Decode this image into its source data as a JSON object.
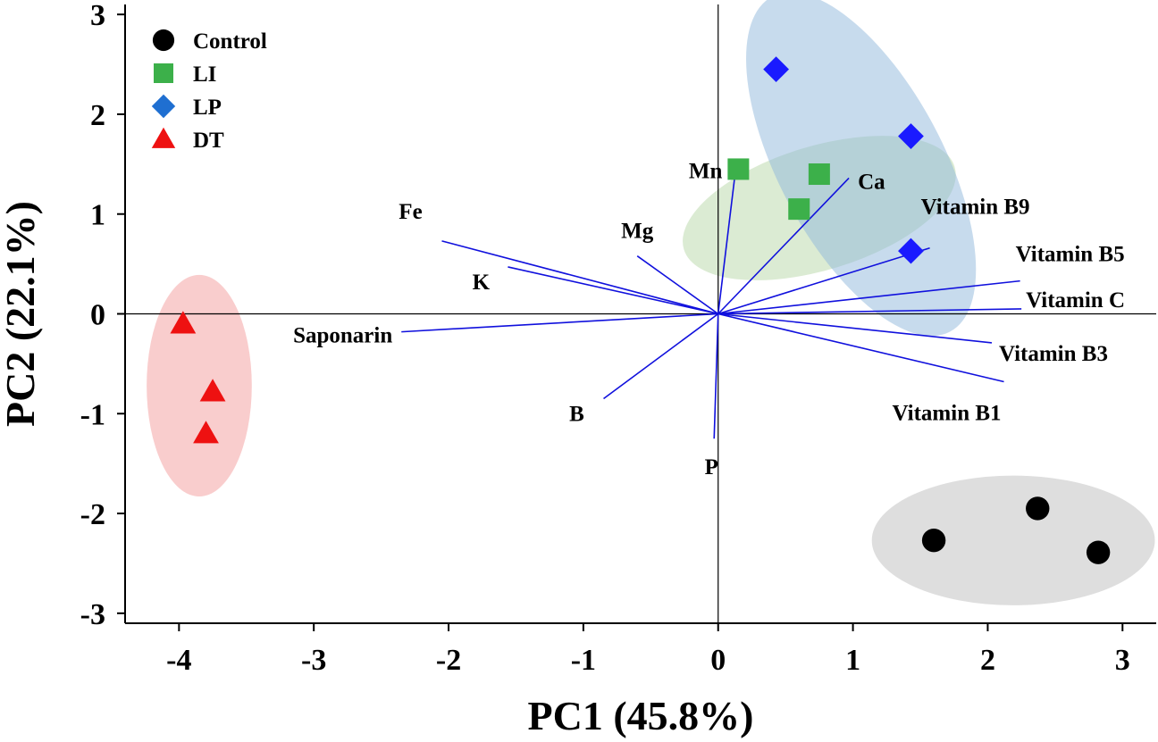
{
  "chart_data": {
    "type": "scatter",
    "subtype": "pca-biplot",
    "xlabel": "PC1 (45.8%)",
    "ylabel": "PC2 (22.1%)",
    "xlim": [
      -4.4,
      3.25
    ],
    "ylim": [
      -3.1,
      3.1
    ],
    "x_ticks": [
      -4,
      -3,
      -2,
      -1,
      0,
      1,
      2,
      3
    ],
    "y_ticks": [
      -3,
      -2,
      -1,
      0,
      1,
      2,
      3
    ],
    "x_tick_labels": [
      "-4",
      "-3",
      "-2",
      "-1",
      "0",
      "1",
      "2",
      "3"
    ],
    "y_tick_labels": [
      "-3",
      "-2",
      "-1",
      "0",
      "1",
      "2",
      "3"
    ],
    "legend_position": "top-left",
    "series": [
      {
        "name": "Control",
        "marker": "circle",
        "color": "#000000",
        "ellipse_color": "#bdbdbd",
        "points": [
          [
            1.6,
            -2.27
          ],
          [
            2.37,
            -1.95
          ],
          [
            2.82,
            -2.39
          ]
        ]
      },
      {
        "name": "LI",
        "marker": "square",
        "color": "#3cb04a",
        "ellipse_color": "#b7d7a8",
        "points": [
          [
            0.15,
            1.45
          ],
          [
            0.75,
            1.4
          ],
          [
            0.6,
            1.05
          ]
        ]
      },
      {
        "name": "LP",
        "marker": "diamond",
        "color": "#1a1aff",
        "legend_color": "#1f6fd1",
        "ellipse_color": "#8fb8dc",
        "points": [
          [
            0.43,
            2.45
          ],
          [
            1.43,
            1.78
          ],
          [
            1.43,
            0.63
          ]
        ]
      },
      {
        "name": "DT",
        "marker": "triangle",
        "color": "#ee1111",
        "ellipse_color": "#f49b9b",
        "points": [
          [
            -3.97,
            -0.1
          ],
          [
            -3.75,
            -0.78
          ],
          [
            -3.8,
            -1.2
          ]
        ]
      }
    ],
    "group_ellipses": [
      {
        "group": "Control",
        "cx": 2.19,
        "cy": -2.27,
        "rx": 1.05,
        "ry": 0.65,
        "rotation_deg": 0
      },
      {
        "group": "LI",
        "cx": 0.75,
        "cy": 1.06,
        "rx": 1.05,
        "ry": 0.62,
        "rotation_deg": -17
      },
      {
        "group": "LP",
        "cx": 1.06,
        "cy": 1.5,
        "rx": 0.61,
        "ry": 1.9,
        "rotation_deg": -28
      },
      {
        "group": "DT",
        "cx": -3.85,
        "cy": -0.72,
        "rx": 0.39,
        "ry": 1.11,
        "rotation_deg": 0
      }
    ],
    "loading_color": "#1010dd",
    "loadings": [
      {
        "name": "Fe",
        "x": -2.05,
        "y": 0.73
      },
      {
        "name": "K",
        "x": -1.56,
        "y": 0.47
      },
      {
        "name": "Mg",
        "x": -0.6,
        "y": 0.58
      },
      {
        "name": "Saponarin",
        "x": -2.35,
        "y": -0.18
      },
      {
        "name": "B",
        "x": -0.85,
        "y": -0.85
      },
      {
        "name": "P",
        "x": -0.03,
        "y": -1.25
      },
      {
        "name": "Mn",
        "x": 0.13,
        "y": 1.45
      },
      {
        "name": "Ca",
        "x": 0.97,
        "y": 1.36
      },
      {
        "name": "Vitamin B9",
        "x": 1.57,
        "y": 0.66
      },
      {
        "name": "Vitamin B5",
        "x": 2.24,
        "y": 0.33
      },
      {
        "name": "Vitamin C",
        "x": 2.25,
        "y": 0.05
      },
      {
        "name": "Vitamin B3",
        "x": 2.03,
        "y": -0.29
      },
      {
        "name": "Vitamin B1",
        "x": 2.12,
        "y": -0.68
      }
    ]
  }
}
